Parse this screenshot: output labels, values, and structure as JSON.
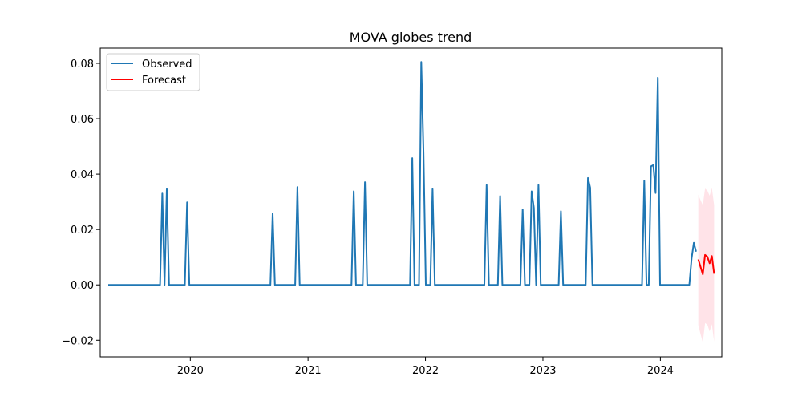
{
  "chart_data": {
    "type": "line",
    "title": "MOVA globes trend",
    "xlabel": "",
    "ylabel": "",
    "xlim": [
      "2019-03-27",
      "2024-07-10"
    ],
    "ylim": [
      -0.026,
      0.0855
    ],
    "x_tick_labels": [
      "2020",
      "2021",
      "2022",
      "2023",
      "2024"
    ],
    "y_tick_labels": [
      "−0.02",
      "0.00",
      "0.02",
      "0.04",
      "0.06",
      "0.08"
    ],
    "y_ticks": [
      -0.02,
      0.0,
      0.02,
      0.04,
      0.06,
      0.08
    ],
    "grid": false,
    "legend": {
      "position": "top-left",
      "entries": [
        "Observed",
        "Forecast"
      ]
    },
    "colors": {
      "observed": "#1f77b4",
      "forecast": "#ff0000",
      "band": "#ffc0cb"
    },
    "series": [
      {
        "name": "Observed",
        "points": [
          [
            "2019-04-21",
            0.0
          ],
          [
            "2019-09-29",
            0.0
          ],
          [
            "2019-10-06",
            0.033
          ],
          [
            "2019-10-13",
            0.0
          ],
          [
            "2019-10-20",
            0.0346
          ],
          [
            "2019-10-27",
            0.0
          ],
          [
            "2019-12-15",
            0.0
          ],
          [
            "2019-12-22",
            0.0298
          ],
          [
            "2019-12-29",
            0.0
          ],
          [
            "2020-09-06",
            0.0
          ],
          [
            "2020-09-13",
            0.0258
          ],
          [
            "2020-09-20",
            0.0
          ],
          [
            "2020-11-22",
            0.0
          ],
          [
            "2020-11-29",
            0.0353
          ],
          [
            "2020-12-06",
            0.0
          ],
          [
            "2021-05-16",
            0.0
          ],
          [
            "2021-05-23",
            0.0338
          ],
          [
            "2021-05-30",
            0.0
          ],
          [
            "2021-06-20",
            0.0
          ],
          [
            "2021-06-27",
            0.0371
          ],
          [
            "2021-07-04",
            0.0
          ],
          [
            "2021-11-14",
            0.0
          ],
          [
            "2021-11-21",
            0.0458
          ],
          [
            "2021-11-28",
            0.0
          ],
          [
            "2021-12-12",
            0.0
          ],
          [
            "2021-12-19",
            0.0805
          ],
          [
            "2021-12-26",
            0.0478
          ],
          [
            "2022-01-02",
            0.0
          ],
          [
            "2022-01-16",
            0.0
          ],
          [
            "2022-01-23",
            0.0346
          ],
          [
            "2022-01-30",
            0.0
          ],
          [
            "2022-07-03",
            0.0
          ],
          [
            "2022-07-10",
            0.0361
          ],
          [
            "2022-07-17",
            0.0
          ],
          [
            "2022-08-14",
            0.0
          ],
          [
            "2022-08-21",
            0.0321
          ],
          [
            "2022-08-28",
            0.0
          ],
          [
            "2022-10-23",
            0.0
          ],
          [
            "2022-10-30",
            0.0273
          ],
          [
            "2022-11-06",
            0.0
          ],
          [
            "2022-11-20",
            0.0
          ],
          [
            "2022-11-27",
            0.0338
          ],
          [
            "2022-12-04",
            0.0278
          ],
          [
            "2022-12-11",
            0.0
          ],
          [
            "2022-12-18",
            0.0361
          ],
          [
            "2022-12-25",
            0.0
          ],
          [
            "2023-02-19",
            0.0
          ],
          [
            "2023-02-26",
            0.0266
          ],
          [
            "2023-03-05",
            0.0
          ],
          [
            "2023-05-14",
            0.0
          ],
          [
            "2023-05-21",
            0.0386
          ],
          [
            "2023-05-28",
            0.0351
          ],
          [
            "2023-06-04",
            0.0
          ],
          [
            "2023-11-05",
            0.0
          ],
          [
            "2023-11-12",
            0.0376
          ],
          [
            "2023-11-19",
            0.0
          ],
          [
            "2023-11-26",
            0.0
          ],
          [
            "2023-12-03",
            0.0428
          ],
          [
            "2023-12-10",
            0.0433
          ],
          [
            "2023-12-17",
            0.0332
          ],
          [
            "2023-12-24",
            0.0748
          ],
          [
            "2023-12-31",
            0.0
          ],
          [
            "2024-03-31",
            0.0
          ],
          [
            "2024-04-07",
            0.0095
          ],
          [
            "2024-04-14",
            0.0152
          ],
          [
            "2024-04-21",
            0.012
          ]
        ]
      },
      {
        "name": "Forecast",
        "points": [
          [
            "2024-04-28",
            0.0092
          ],
          [
            "2024-05-05",
            0.0065
          ],
          [
            "2024-05-12",
            0.0038
          ],
          [
            "2024-05-19",
            0.0108
          ],
          [
            "2024-05-26",
            0.0102
          ],
          [
            "2024-06-02",
            0.0078
          ],
          [
            "2024-06-09",
            0.0104
          ],
          [
            "2024-06-16",
            0.004
          ]
        ],
        "band_lower": [
          -0.0145,
          -0.0178,
          -0.0208,
          -0.0138,
          -0.0143,
          -0.0168,
          -0.0142,
          -0.0205
        ],
        "band_upper": [
          0.0326,
          0.0306,
          0.0288,
          0.0348,
          0.0341,
          0.0322,
          0.035,
          0.0288
        ]
      }
    ]
  }
}
